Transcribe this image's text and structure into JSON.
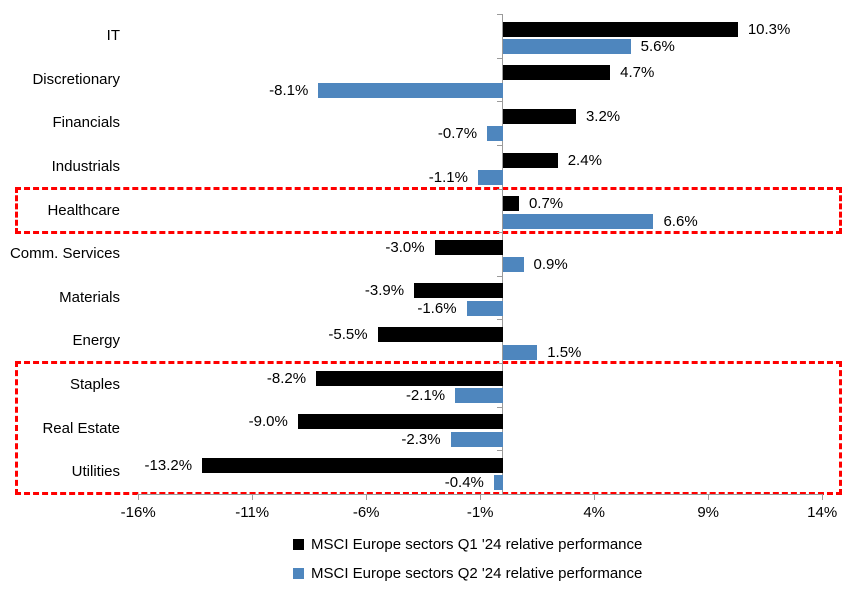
{
  "chart_data": {
    "type": "bar",
    "orientation": "horizontal",
    "title": "",
    "categories": [
      "IT",
      "Discretionary",
      "Financials",
      "Industrials",
      "Healthcare",
      "Comm. Services",
      "Materials",
      "Energy",
      "Staples",
      "Real Estate",
      "Utilities"
    ],
    "series": [
      {
        "name": "MSCI Europe sectors Q1 '24 relative performance",
        "color": "#000000",
        "values": [
          10.3,
          4.7,
          3.2,
          2.4,
          0.7,
          -3.0,
          -3.9,
          -5.5,
          -8.2,
          -9.0,
          -13.2
        ],
        "labels": [
          "10.3%",
          "4.7%",
          "3.2%",
          "2.4%",
          "0.7%",
          "-3.0%",
          "-3.9%",
          "-5.5%",
          "-8.2%",
          "-9.0%",
          "-13.2%"
        ]
      },
      {
        "name": "MSCI Europe sectors Q2 '24 relative performance",
        "color": "#4E86BE",
        "values": [
          5.6,
          -8.1,
          -0.7,
          -1.1,
          6.6,
          0.9,
          -1.6,
          1.5,
          -2.1,
          -2.3,
          -0.4
        ],
        "labels": [
          "5.6%",
          "-8.1%",
          "-0.7%",
          "-1.1%",
          "6.6%",
          "0.9%",
          "-1.6%",
          "1.5%",
          "-2.1%",
          "-2.3%",
          "-0.4%"
        ]
      }
    ],
    "x_axis": {
      "min": -16,
      "max": 14,
      "ticks": [
        "-16%",
        "-11%",
        "-6%",
        "-1%",
        "4%",
        "9%",
        "14%"
      ],
      "tick_values": [
        -16,
        -11,
        -6,
        -1,
        4,
        9,
        14
      ]
    },
    "grid": "off",
    "legend_position": "bottom",
    "axis_color": "#9B9B9B",
    "highlight_color": "#FF0000",
    "highlights": [
      {
        "id": "healthcare",
        "categories": [
          "Healthcare"
        ]
      },
      {
        "id": "defensives",
        "categories": [
          "Staples",
          "Real Estate",
          "Utilities"
        ]
      }
    ]
  }
}
